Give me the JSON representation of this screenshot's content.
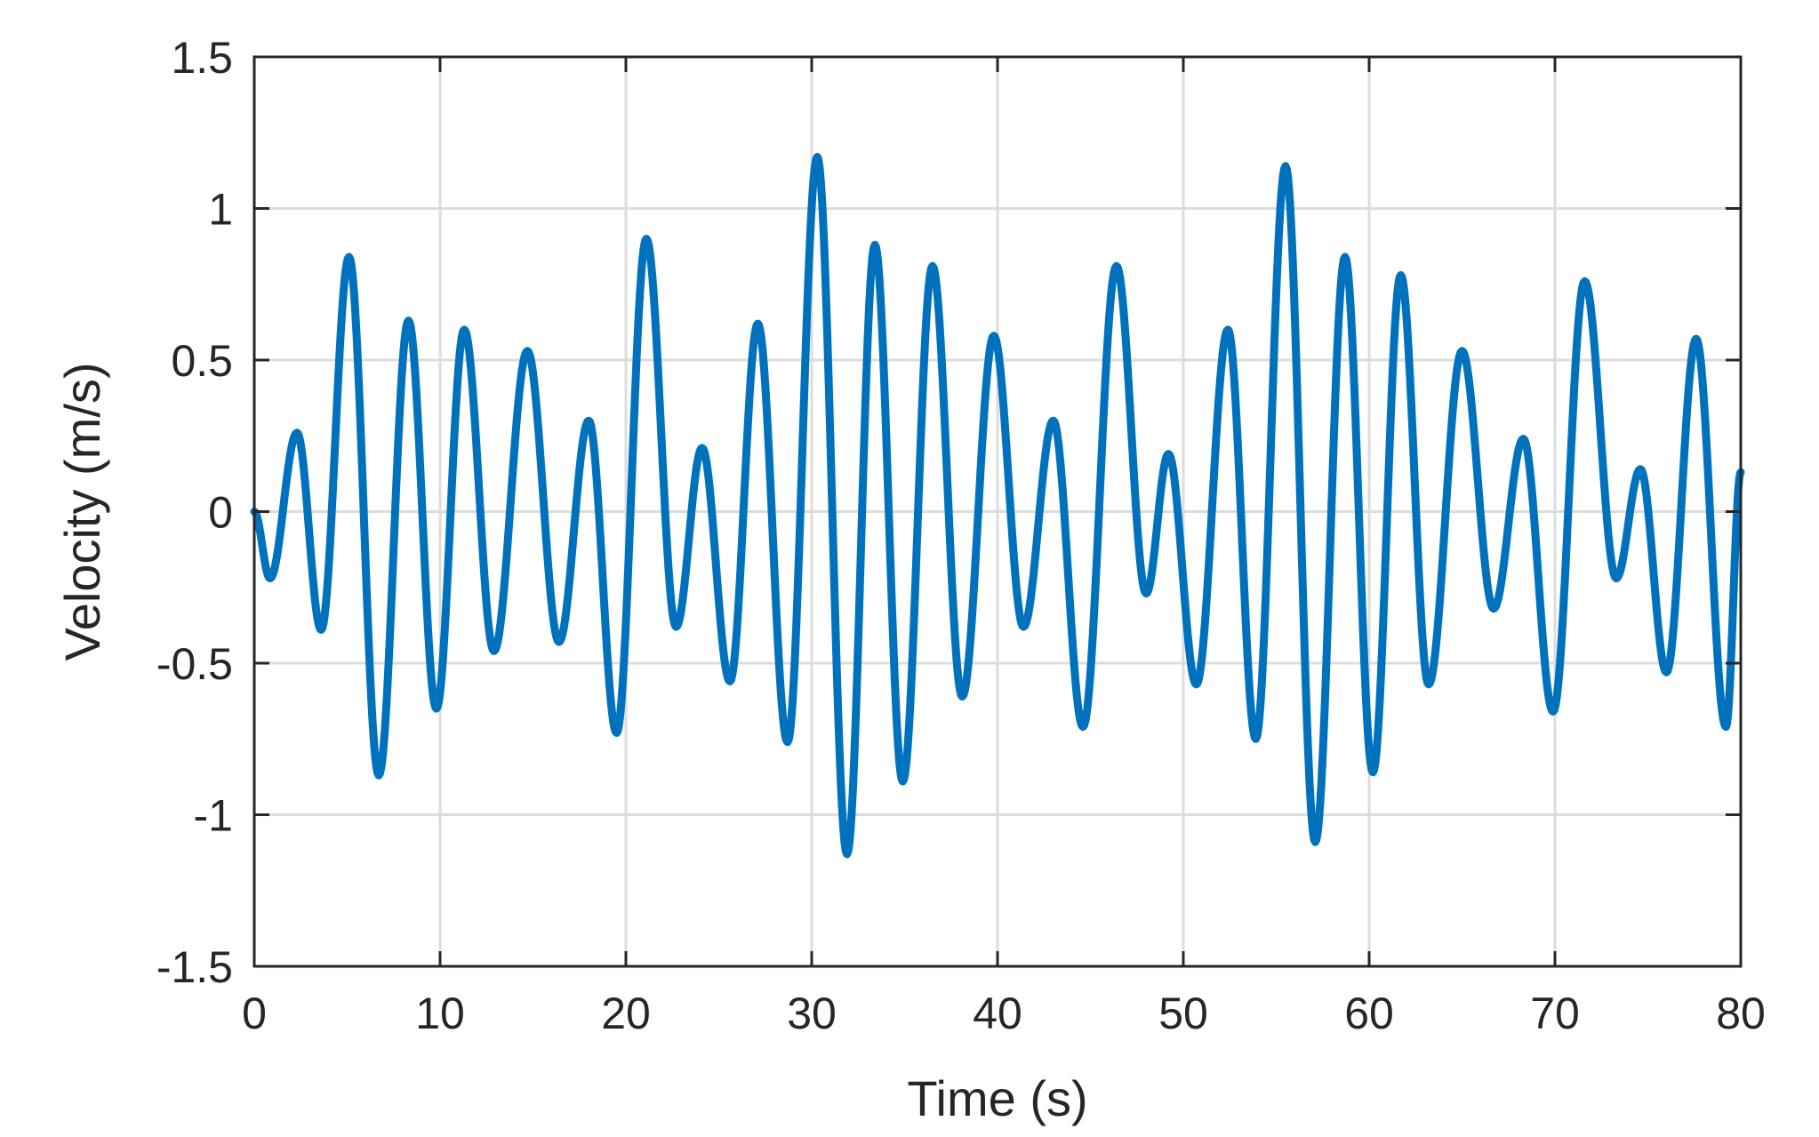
{
  "chart_data": {
    "type": "line",
    "title": "",
    "xlabel": "Time (s)",
    "ylabel": "Velocity (m/s)",
    "xlim": [
      0,
      80
    ],
    "ylim": [
      -1.5,
      1.5
    ],
    "x_ticks": [
      0,
      10,
      20,
      30,
      40,
      50,
      60,
      70,
      80
    ],
    "y_ticks": [
      -1.5,
      -1,
      -0.5,
      0,
      0.5,
      1,
      1.5
    ],
    "x_tick_labels": [
      "0",
      "10",
      "20",
      "30",
      "40",
      "50",
      "60",
      "70",
      "80"
    ],
    "y_tick_labels": [
      "-1.5",
      "-1",
      "-0.5",
      "0",
      "0.5",
      "1",
      "1.5"
    ],
    "grid": true,
    "series": [
      {
        "color": "#0072BD",
        "points": [
          [
            0,
            0
          ],
          [
            0.85,
            -0.22
          ],
          [
            2.3,
            0.26
          ],
          [
            3.6,
            -0.39
          ],
          [
            5.1,
            0.84
          ],
          [
            6.7,
            -0.87
          ],
          [
            8.3,
            0.63
          ],
          [
            9.8,
            -0.65
          ],
          [
            11.3,
            0.6
          ],
          [
            12.9,
            -0.46
          ],
          [
            14.7,
            0.53
          ],
          [
            16.4,
            -0.43
          ],
          [
            18.0,
            0.3
          ],
          [
            19.5,
            -0.73
          ],
          [
            21.1,
            0.9
          ],
          [
            22.7,
            -0.38
          ],
          [
            24.1,
            0.21
          ],
          [
            25.6,
            -0.56
          ],
          [
            27.1,
            0.62
          ],
          [
            28.7,
            -0.76
          ],
          [
            30.3,
            1.17
          ],
          [
            31.9,
            -1.13
          ],
          [
            33.4,
            0.88
          ],
          [
            34.9,
            -0.89
          ],
          [
            36.5,
            0.81
          ],
          [
            38.1,
            -0.61
          ],
          [
            39.8,
            0.58
          ],
          [
            41.4,
            -0.38
          ],
          [
            43.0,
            0.3
          ],
          [
            44.6,
            -0.71
          ],
          [
            46.4,
            0.81
          ],
          [
            48.0,
            -0.27
          ],
          [
            49.2,
            0.19
          ],
          [
            50.7,
            -0.57
          ],
          [
            52.4,
            0.6
          ],
          [
            53.9,
            -0.75
          ],
          [
            55.5,
            1.14
          ],
          [
            57.1,
            -1.09
          ],
          [
            58.7,
            0.84
          ],
          [
            60.2,
            -0.86
          ],
          [
            61.7,
            0.78
          ],
          [
            63.2,
            -0.57
          ],
          [
            65.0,
            0.53
          ],
          [
            66.7,
            -0.32
          ],
          [
            68.3,
            0.24
          ],
          [
            69.9,
            -0.66
          ],
          [
            71.6,
            0.76
          ],
          [
            73.3,
            -0.22
          ],
          [
            74.6,
            0.14
          ],
          [
            76.0,
            -0.53
          ],
          [
            77.6,
            0.57
          ],
          [
            79.2,
            -0.71
          ],
          [
            80,
            0.13
          ]
        ]
      }
    ]
  }
}
